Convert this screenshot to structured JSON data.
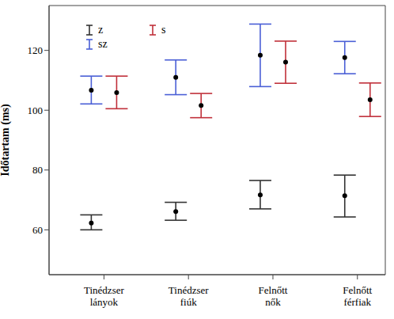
{
  "chart_data": {
    "type": "errorbar",
    "y_label": "Időtartam (ms)",
    "categories": [
      "Tinédzser lányok",
      "Tinédzser fiúk",
      "Felnőtt nők",
      "Felnőtt férfiak"
    ],
    "series": [
      {
        "name": "z",
        "color": "#333333",
        "values": [
          62.3,
          66.1,
          71.7,
          71.4
        ],
        "lower": [
          60.0,
          63.2,
          67.0,
          64.3
        ],
        "upper": [
          65.0,
          69.2,
          76.5,
          78.3
        ]
      },
      {
        "name": "sz",
        "color": "#4a5fd6",
        "values": [
          106.7,
          111.0,
          118.4,
          117.6
        ],
        "lower": [
          102.1,
          105.2,
          107.9,
          112.2
        ],
        "upper": [
          111.4,
          116.8,
          128.8,
          123.0
        ]
      },
      {
        "name": "s",
        "color": "#c0303a",
        "values": [
          105.9,
          101.6,
          116.1,
          103.5
        ],
        "lower": [
          100.5,
          97.5,
          109.0,
          97.9
        ],
        "upper": [
          111.4,
          105.6,
          123.1,
          109.1
        ]
      }
    ],
    "ylim": [
      45,
      135
    ],
    "yticks": [
      60,
      80,
      100,
      120
    ],
    "grid": false,
    "legend": "top-left"
  }
}
